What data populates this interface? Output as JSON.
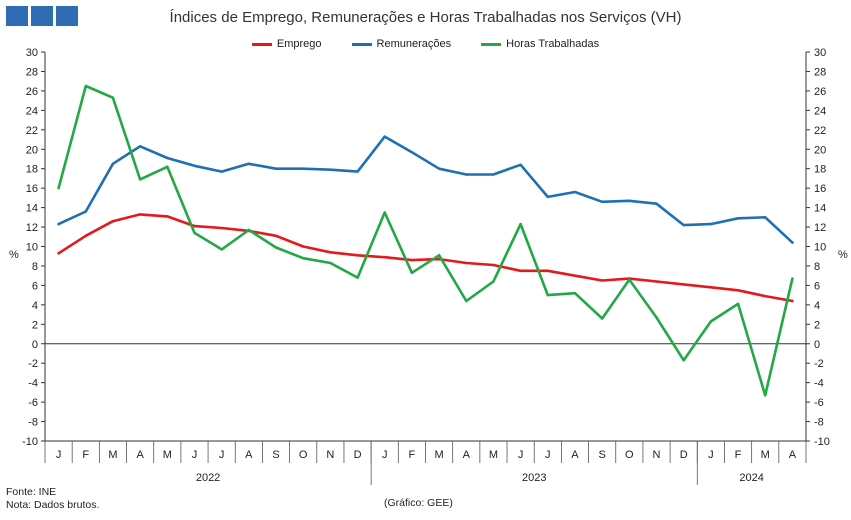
{
  "header": {
    "title": "Índices de Emprego, Remunerações e Horas Trabalhadas  nos Serviços (VH)",
    "logo_color": "#2e6db4"
  },
  "footer": {
    "source": "Fonte: INE",
    "note": "Nota: Dados brutos.",
    "credit": "(Gráfico: GEE)"
  },
  "chart_data": {
    "type": "line",
    "title": "Índices de Emprego, Remunerações e Horas Trabalhadas  nos Serviços (VH)",
    "ylabel": "%",
    "y2label": "%",
    "ylim": [
      -10,
      30
    ],
    "yticks": [
      -10,
      -8,
      -6,
      -4,
      -2,
      0,
      2,
      4,
      6,
      8,
      10,
      12,
      14,
      16,
      18,
      20,
      22,
      24,
      26,
      28,
      30
    ],
    "grid": false,
    "legend_position": "top-center",
    "categories": [
      "J",
      "F",
      "M",
      "A",
      "M",
      "J",
      "J",
      "A",
      "S",
      "O",
      "N",
      "D",
      "J",
      "F",
      "M",
      "A",
      "M",
      "J",
      "J",
      "A",
      "S",
      "O",
      "N",
      "D",
      "J",
      "F",
      "M",
      "A"
    ],
    "years": [
      {
        "label": "2022",
        "start": 0,
        "end": 11
      },
      {
        "label": "2023",
        "start": 12,
        "end": 23
      },
      {
        "label": "2024",
        "start": 24,
        "end": 27
      }
    ],
    "series": [
      {
        "name": "Emprego",
        "color": "#e31a1c",
        "values": [
          9.3,
          11.1,
          12.6,
          13.3,
          13.1,
          12.1,
          11.9,
          11.6,
          11.1,
          10.0,
          9.4,
          9.1,
          8.9,
          8.6,
          8.7,
          8.3,
          8.1,
          7.5,
          7.5,
          7.0,
          6.5,
          6.7,
          6.4,
          6.1,
          5.8,
          5.5,
          4.9,
          4.4
        ]
      },
      {
        "name": "Remunerações",
        "color": "#1f6fb4",
        "values": [
          12.3,
          13.6,
          18.5,
          20.3,
          19.1,
          18.3,
          17.7,
          18.5,
          18.0,
          18.0,
          17.9,
          17.7,
          21.3,
          19.7,
          18.0,
          17.4,
          17.4,
          18.4,
          15.1,
          15.6,
          14.6,
          14.7,
          14.4,
          12.2,
          12.3,
          12.9,
          13.0,
          10.4
        ]
      },
      {
        "name": "Horas Trabalhadas",
        "color": "#22a845",
        "values": [
          16.0,
          26.5,
          25.3,
          16.9,
          18.2,
          11.4,
          9.7,
          11.7,
          9.9,
          8.8,
          8.3,
          6.8,
          13.5,
          7.3,
          9.1,
          4.4,
          6.4,
          12.3,
          5.0,
          5.2,
          2.6,
          6.6,
          2.7,
          -1.7,
          2.3,
          4.1,
          -5.3,
          6.7
        ]
      }
    ]
  }
}
